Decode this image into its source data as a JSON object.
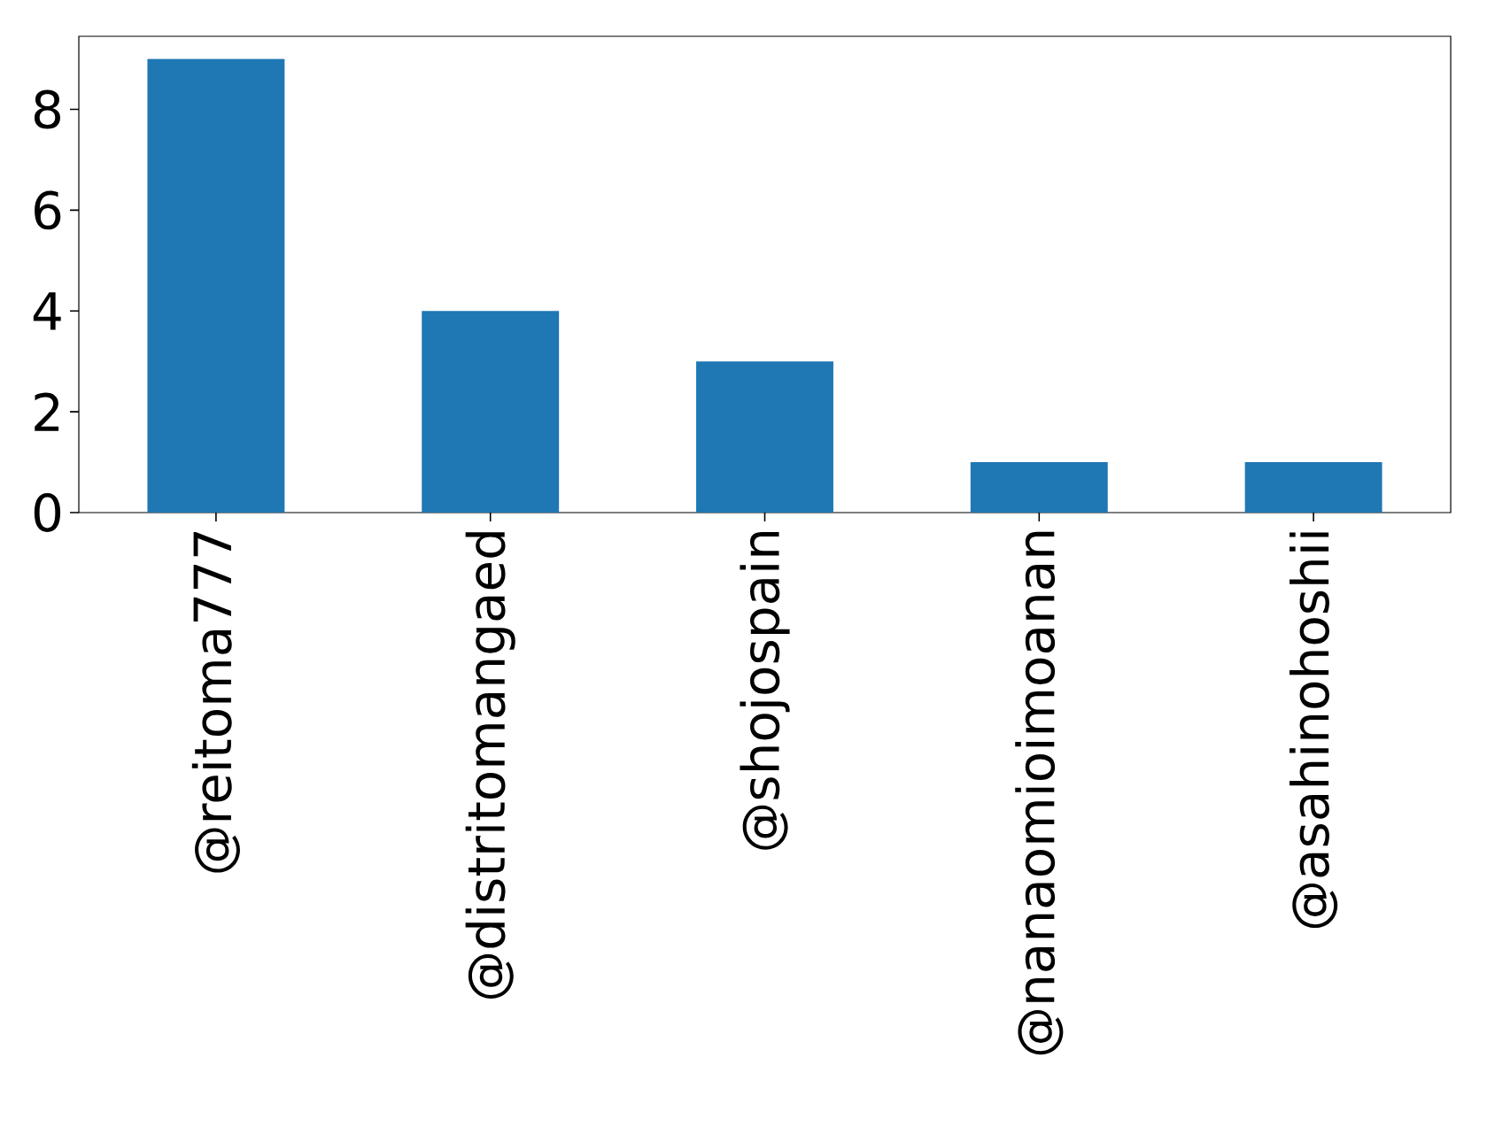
{
  "chart_data": {
    "type": "bar",
    "categories": [
      "@reitoma777",
      "@distritomangaed",
      "@shojospain",
      "@nanaomioimoanan",
      "@asahinohoshii"
    ],
    "values": [
      9,
      4,
      3,
      1,
      1
    ],
    "color": "#1f77b4",
    "ylim": [
      0,
      9.45
    ],
    "yticks": [
      0,
      2,
      4,
      6,
      8
    ]
  }
}
